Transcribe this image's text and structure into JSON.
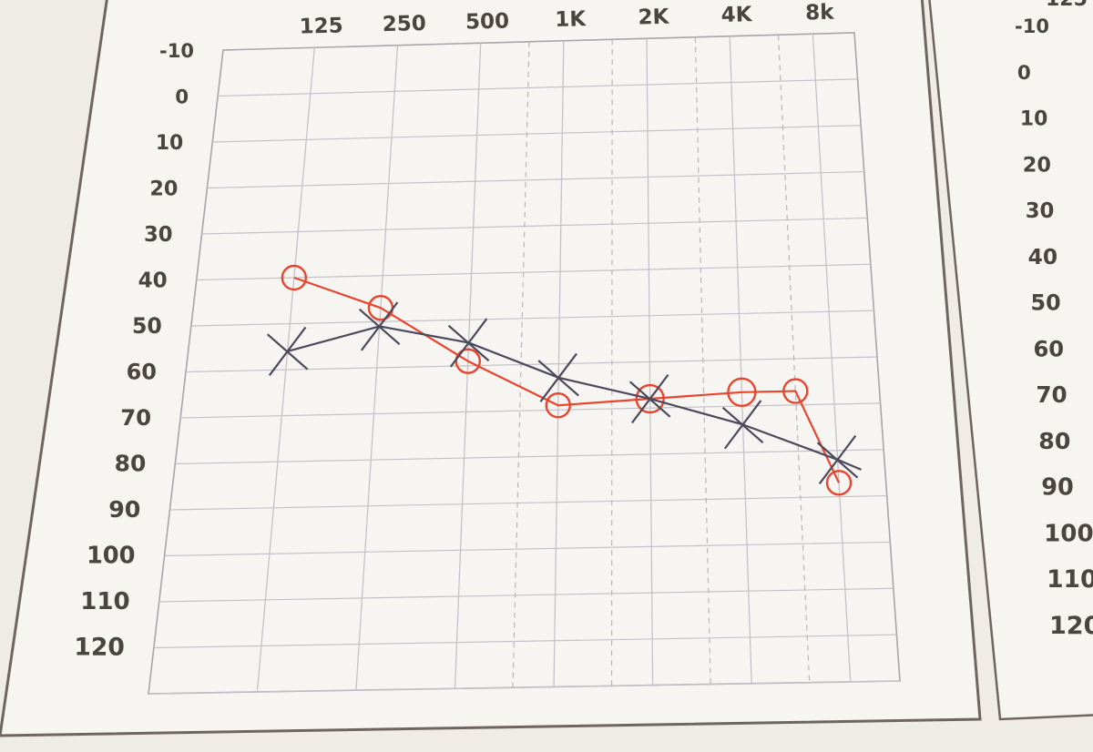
{
  "chart_data": [
    {
      "type": "line",
      "title": "",
      "xlabel": "",
      "ylabel": "",
      "x_tick_labels": [
        "125",
        "250",
        "500",
        "1K",
        "2K",
        "4K",
        "8k"
      ],
      "y_tick_labels": [
        "-10",
        "0",
        "10",
        "20",
        "30",
        "40",
        "50",
        "60",
        "70",
        "80",
        "90",
        "100",
        "110",
        "120"
      ],
      "ylim": [
        -10,
        120
      ],
      "y_inverted": true,
      "grid": true,
      "series": [
        {
          "marker": "circle",
          "color": "#e8452f",
          "points": [
            {
              "x": 125,
              "y": 40
            },
            {
              "x": 250,
              "y": 47
            },
            {
              "x": 500,
              "y": 59
            },
            {
              "x": 1000,
              "y": 69
            },
            {
              "x": 2000,
              "y": 68
            },
            {
              "x": 4000,
              "y": 67
            },
            {
              "x": 6000,
              "y": 67
            },
            {
              "x": 8000,
              "y": 87
            }
          ]
        },
        {
          "marker": "cross",
          "color": "#4a4a5c",
          "points": [
            {
              "x": 125,
              "y": 56
            },
            {
              "x": 250,
              "y": 51
            },
            {
              "x": 500,
              "y": 55
            },
            {
              "x": 1000,
              "y": 63
            },
            {
              "x": 2000,
              "y": 68
            },
            {
              "x": 4000,
              "y": 74
            },
            {
              "x": 8000,
              "y": 82
            }
          ]
        }
      ]
    },
    {
      "type": "line",
      "title": "",
      "partial": true,
      "x_tick_labels": [
        "125"
      ],
      "y_tick_labels": [
        "-10",
        "0",
        "10",
        "20",
        "30",
        "40",
        "50",
        "60",
        "70",
        "80",
        "90",
        "100",
        "110",
        "120"
      ],
      "ylim": [
        -10,
        120
      ],
      "y_inverted": true,
      "grid": true,
      "series": []
    }
  ]
}
